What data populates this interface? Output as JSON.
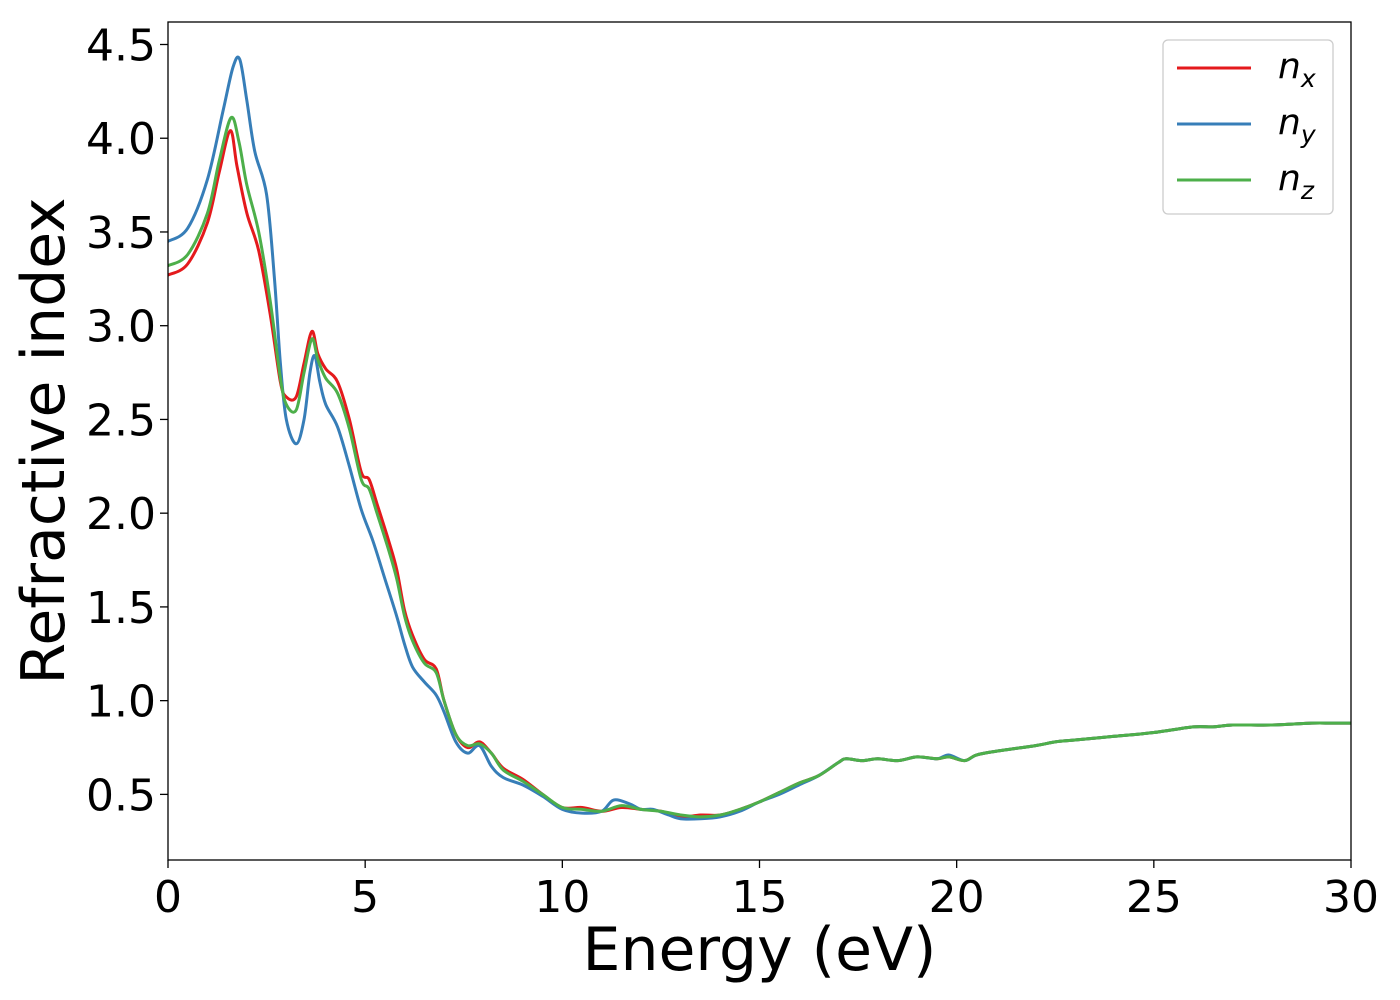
{
  "chart_data": {
    "type": "line",
    "title": "",
    "xlabel": "Energy (eV)",
    "ylabel": "Refractive index",
    "xlim": [
      0,
      30
    ],
    "ylim": [
      0.15,
      4.62
    ],
    "xticks": [
      0,
      5,
      10,
      15,
      20,
      25,
      30
    ],
    "xtick_labels": [
      "0",
      "5",
      "10",
      "15",
      "20",
      "25",
      "30"
    ],
    "yticks": [
      0.5,
      1.0,
      1.5,
      2.0,
      2.5,
      3.0,
      3.5,
      4.0,
      4.5
    ],
    "ytick_labels": [
      "0.5",
      "1.0",
      "1.5",
      "2.0",
      "2.5",
      "3.0",
      "3.5",
      "4.0",
      "4.5"
    ],
    "grid": false,
    "legend_position": "top-right",
    "series": [
      {
        "name": "n_x",
        "legend_base": "n",
        "legend_sub": "x",
        "color": "#e41a1c",
        "x": [
          0,
          0.5,
          1.0,
          1.3,
          1.58,
          1.75,
          2.0,
          2.3,
          2.6,
          2.85,
          3.0,
          3.25,
          3.45,
          3.65,
          3.8,
          4.0,
          4.3,
          4.6,
          4.9,
          5.1,
          5.3,
          5.6,
          5.8,
          6.0,
          6.2,
          6.5,
          6.8,
          7.0,
          7.3,
          7.6,
          7.9,
          8.2,
          8.5,
          9.0,
          9.5,
          10.0,
          10.5,
          11.0,
          11.5,
          12.0,
          12.5,
          13.0,
          13.5,
          14.0,
          14.5,
          15.0,
          15.5,
          16.0,
          16.5,
          17.0,
          17.2,
          17.6,
          18.0,
          18.5,
          19.0,
          19.5,
          19.8,
          20.2,
          20.5,
          21.0,
          22.0,
          22.5,
          23.0,
          24.0,
          25.0,
          26.0,
          26.5,
          27.0,
          28.0,
          29.0,
          29.5,
          30.0
        ],
        "y": [
          3.27,
          3.33,
          3.55,
          3.82,
          4.04,
          3.85,
          3.6,
          3.4,
          3.05,
          2.7,
          2.62,
          2.62,
          2.8,
          2.97,
          2.85,
          2.77,
          2.7,
          2.5,
          2.22,
          2.18,
          2.05,
          1.85,
          1.7,
          1.48,
          1.35,
          1.22,
          1.17,
          1.0,
          0.82,
          0.75,
          0.78,
          0.72,
          0.64,
          0.58,
          0.5,
          0.43,
          0.43,
          0.41,
          0.43,
          0.42,
          0.41,
          0.38,
          0.39,
          0.39,
          0.42,
          0.46,
          0.51,
          0.56,
          0.6,
          0.67,
          0.69,
          0.68,
          0.69,
          0.68,
          0.7,
          0.69,
          0.7,
          0.68,
          0.71,
          0.73,
          0.76,
          0.78,
          0.79,
          0.81,
          0.83,
          0.86,
          0.86,
          0.87,
          0.87,
          0.88,
          0.88,
          0.88
        ]
      },
      {
        "name": "n_y",
        "legend_base": "n",
        "legend_sub": "y",
        "color": "#377eb8",
        "x": [
          0,
          0.5,
          1.0,
          1.4,
          1.65,
          1.82,
          2.0,
          2.2,
          2.5,
          2.7,
          2.85,
          3.0,
          3.25,
          3.45,
          3.6,
          3.72,
          3.85,
          4.0,
          4.3,
          4.6,
          4.9,
          5.2,
          5.5,
          5.8,
          6.0,
          6.2,
          6.5,
          6.8,
          7.0,
          7.3,
          7.6,
          7.9,
          8.2,
          8.5,
          9.0,
          9.5,
          10.0,
          10.5,
          11.0,
          11.3,
          11.7,
          12.0,
          12.3,
          12.7,
          13.0,
          13.5,
          14.0,
          14.5,
          15.0,
          15.5,
          16.0,
          16.5,
          17.0,
          17.2,
          17.6,
          18.0,
          18.5,
          19.0,
          19.5,
          19.8,
          20.2,
          20.5,
          21.0,
          22.0,
          22.5,
          23.0,
          24.0,
          25.0,
          26.0,
          26.5,
          27.0,
          28.0,
          29.0,
          29.5,
          30.0
        ],
        "y": [
          3.45,
          3.52,
          3.78,
          4.15,
          4.38,
          4.42,
          4.2,
          3.93,
          3.7,
          3.25,
          2.8,
          2.5,
          2.37,
          2.5,
          2.75,
          2.84,
          2.7,
          2.58,
          2.46,
          2.25,
          2.02,
          1.85,
          1.65,
          1.45,
          1.3,
          1.18,
          1.1,
          1.03,
          0.94,
          0.78,
          0.72,
          0.76,
          0.65,
          0.59,
          0.55,
          0.49,
          0.42,
          0.4,
          0.41,
          0.47,
          0.45,
          0.42,
          0.42,
          0.39,
          0.37,
          0.37,
          0.38,
          0.41,
          0.46,
          0.5,
          0.55,
          0.6,
          0.67,
          0.69,
          0.68,
          0.69,
          0.68,
          0.7,
          0.69,
          0.71,
          0.68,
          0.71,
          0.73,
          0.76,
          0.78,
          0.79,
          0.81,
          0.83,
          0.86,
          0.86,
          0.87,
          0.87,
          0.88,
          0.88,
          0.88
        ]
      },
      {
        "name": "n_z",
        "legend_base": "n",
        "legend_sub": "z",
        "color": "#4daf4a",
        "x": [
          0,
          0.5,
          1.0,
          1.3,
          1.6,
          1.8,
          2.0,
          2.3,
          2.6,
          2.85,
          3.0,
          3.25,
          3.45,
          3.65,
          3.8,
          4.0,
          4.3,
          4.6,
          4.9,
          5.1,
          5.3,
          5.6,
          5.8,
          6.0,
          6.2,
          6.5,
          6.8,
          7.0,
          7.3,
          7.6,
          7.9,
          8.2,
          8.5,
          9.0,
          9.5,
          10.0,
          10.5,
          11.0,
          11.5,
          12.0,
          12.5,
          13.0,
          13.5,
          14.0,
          14.5,
          15.0,
          15.5,
          16.0,
          16.5,
          17.0,
          17.2,
          17.6,
          18.0,
          18.5,
          19.0,
          19.5,
          19.8,
          20.2,
          20.5,
          21.0,
          22.0,
          22.5,
          23.0,
          24.0,
          25.0,
          26.0,
          26.5,
          27.0,
          28.0,
          29.0,
          29.5,
          30.0
        ],
        "y": [
          3.32,
          3.38,
          3.6,
          3.88,
          4.11,
          3.98,
          3.75,
          3.5,
          3.12,
          2.72,
          2.58,
          2.55,
          2.75,
          2.93,
          2.82,
          2.72,
          2.64,
          2.45,
          2.18,
          2.13,
          2.0,
          1.8,
          1.65,
          1.45,
          1.32,
          1.2,
          1.15,
          1.0,
          0.82,
          0.76,
          0.77,
          0.72,
          0.63,
          0.57,
          0.5,
          0.43,
          0.42,
          0.41,
          0.44,
          0.42,
          0.41,
          0.39,
          0.38,
          0.39,
          0.42,
          0.46,
          0.51,
          0.56,
          0.6,
          0.67,
          0.69,
          0.68,
          0.69,
          0.68,
          0.7,
          0.69,
          0.7,
          0.68,
          0.71,
          0.73,
          0.76,
          0.78,
          0.79,
          0.81,
          0.83,
          0.86,
          0.86,
          0.87,
          0.87,
          0.88,
          0.88,
          0.88
        ]
      }
    ]
  }
}
